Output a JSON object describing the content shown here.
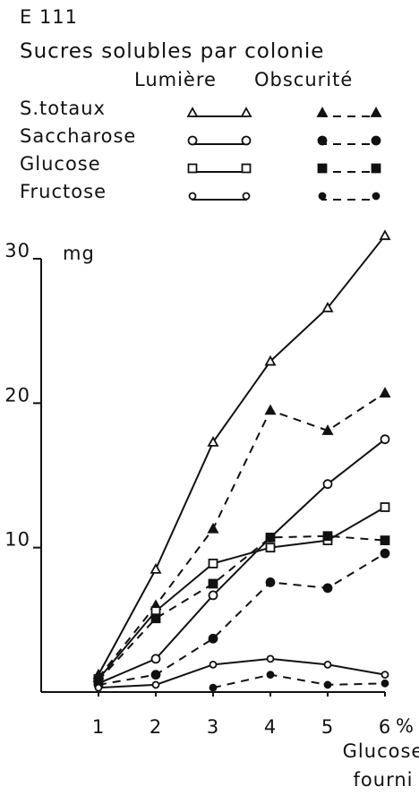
{
  "chart_data": {
    "type": "line",
    "header": "E 111",
    "title": "Sucres solubles par colonie",
    "legend_headers": [
      "Lumière",
      "Obscurité"
    ],
    "y_unit": "mg",
    "x_unit": "%",
    "xlabel": [
      "Glucose",
      "fourni"
    ],
    "x": [
      1,
      2,
      3,
      4,
      5,
      6
    ],
    "xlim": [
      0,
      6
    ],
    "xticks": [
      1,
      2,
      3,
      4,
      5,
      6
    ],
    "ylim": [
      0,
      30
    ],
    "yticks": [
      10,
      20,
      30
    ],
    "color": "#111111",
    "series": [
      {
        "name": "S.totaux",
        "marker": "triangle",
        "light": [
          1.2,
          8.5,
          17.3,
          22.9,
          26.6,
          31.6
        ],
        "dark": [
          1.0,
          6.0,
          11.3,
          19.5,
          18.1,
          20.7
        ]
      },
      {
        "name": "Saccharose",
        "marker": "circle",
        "light": [
          0.6,
          2.3,
          6.7,
          10.7,
          14.4,
          17.5
        ],
        "dark": [
          0.5,
          1.2,
          3.7,
          7.6,
          7.2,
          9.6
        ]
      },
      {
        "name": "Glucose",
        "marker": "square",
        "light": [
          0.9,
          5.6,
          8.9,
          10.0,
          10.5,
          12.8
        ],
        "dark": [
          0.8,
          5.1,
          7.5,
          10.7,
          10.8,
          10.5
        ]
      },
      {
        "name": "Fructose",
        "marker": "small-circle",
        "light": [
          0.3,
          0.5,
          1.9,
          2.3,
          1.9,
          1.2
        ],
        "dark": [
          null,
          null,
          0.3,
          1.2,
          0.5,
          0.6
        ]
      }
    ]
  }
}
